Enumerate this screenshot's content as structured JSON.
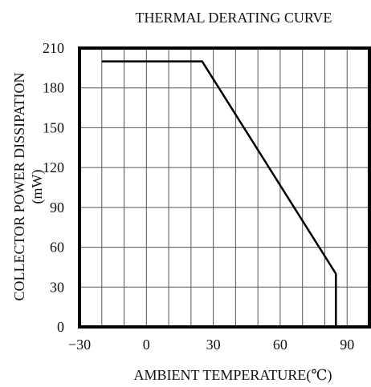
{
  "chart_data": {
    "type": "line",
    "title": "THERMAL DERATING CURVE",
    "xlabel": "AMBIENT TEMPERATURE(℃)",
    "ylabel_line1": "COLLECTOR POWER DISSIPATION",
    "ylabel_line2": "(mW)",
    "xlim": [
      -30,
      100
    ],
    "ylim": [
      0,
      210
    ],
    "xticks": [
      -30,
      0,
      30,
      60,
      90
    ],
    "yticks": [
      0,
      30,
      60,
      90,
      120,
      150,
      180,
      210
    ],
    "xtick_labels": [
      "−30",
      "0",
      "30",
      "60",
      "90"
    ],
    "ytick_labels": [
      "0",
      "30",
      "60",
      "90",
      "120",
      "150",
      "180",
      "210"
    ],
    "x_gridlines": [
      -20,
      -10,
      0,
      10,
      20,
      30,
      40,
      50,
      60,
      70,
      80,
      90
    ],
    "y_gridlines": [
      30,
      60,
      90,
      120,
      150,
      180
    ],
    "grid": true,
    "series": [
      {
        "x": [
          -20,
          25,
          85,
          85
        ],
        "y": [
          200,
          200,
          40,
          0
        ]
      }
    ]
  }
}
